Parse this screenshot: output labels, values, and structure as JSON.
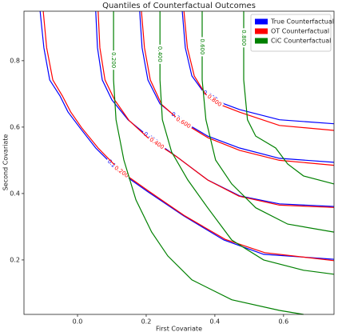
{
  "chart_data": {
    "type": "contour",
    "title": "Quantiles of Counterfactual Outcomes",
    "xlabel": "First Covariate",
    "ylabel": "Second Covariate",
    "xlim": [
      -0.156,
      0.747
    ],
    "ylim": [
      0.036,
      0.949
    ],
    "xticks": [
      {
        "value": 0,
        "label": "0.0"
      },
      0.2,
      0.4,
      0.6
    ],
    "yticks": [
      0.2,
      0.4,
      0.6,
      0.8
    ],
    "legend": "upper right",
    "series": [
      {
        "name": "True Counterfactual",
        "color": "#0000ff",
        "contours": [
          {
            "level": {
              "value": 0.2,
              "label": "0.200"
            },
            "x": [
              -0.109,
              -0.098,
              -0.081,
              -0.051,
              -0.028,
              0.007,
              0.053,
              0.123,
              0.205,
              0.309,
              0.426,
              0.542,
              0.747
            ],
            "y": [
              0.949,
              0.839,
              0.742,
              0.694,
              0.646,
              0.598,
              0.537,
              0.465,
              0.405,
              0.333,
              0.26,
              0.217,
              0.202
            ]
          },
          {
            "level": {
              "value": 0.4,
              "label": "0.400"
            },
            "x": [
              0.053,
              0.058,
              0.072,
              0.1,
              0.147,
              0.205,
              0.286,
              0.379,
              0.472,
              0.588,
              0.747
            ],
            "y": [
              0.949,
              0.839,
              0.742,
              0.682,
              0.622,
              0.573,
              0.513,
              0.441,
              0.393,
              0.369,
              0.361
            ]
          },
          {
            "level": {
              "value": 0.6,
              "label": "0.600"
            },
            "x": [
              0.181,
              0.188,
              0.205,
              0.24,
              0.298,
              0.379,
              0.472,
              0.588,
              0.747
            ],
            "y": [
              0.949,
              0.839,
              0.742,
              0.67,
              0.622,
              0.573,
              0.537,
              0.506,
              0.494
            ]
          },
          {
            "level": {
              "value": 0.8,
              "label": "0.800"
            },
            "x": [
              0.305,
              0.314,
              0.333,
              0.367,
              0.414,
              0.472,
              0.588,
              0.747
            ],
            "y": [
              0.949,
              0.839,
              0.754,
              0.706,
              0.675,
              0.653,
              0.622,
              0.61
            ]
          }
        ]
      },
      {
        "name": "OT Counterfactual",
        "color": "#ff0000",
        "contours": [
          {
            "level": {
              "value": 0.2,
              "label": "0.200"
            },
            "x": [
              -0.1,
              -0.09,
              -0.072,
              -0.044,
              -0.02,
              0.012,
              0.06,
              0.128,
              0.21,
              0.312,
              0.43,
              0.545,
              0.747
            ],
            "y": [
              0.949,
              0.839,
              0.742,
              0.694,
              0.646,
              0.598,
              0.537,
              0.465,
              0.405,
              0.333,
              0.262,
              0.222,
              0.198
            ]
          },
          {
            "level": {
              "value": 0.4,
              "label": "0.400"
            },
            "x": [
              0.06,
              0.065,
              0.08,
              0.108,
              0.15,
              0.205,
              0.29,
              0.38,
              0.47,
              0.588,
              0.747
            ],
            "y": [
              0.949,
              0.839,
              0.742,
              0.682,
              0.62,
              0.568,
              0.51,
              0.44,
              0.392,
              0.365,
              0.358
            ]
          },
          {
            "level": {
              "value": 0.6,
              "label": "0.600"
            },
            "x": [
              0.186,
              0.195,
              0.212,
              0.245,
              0.3,
              0.38,
              0.472,
              0.588,
              0.747
            ],
            "y": [
              0.949,
              0.839,
              0.742,
              0.668,
              0.618,
              0.568,
              0.53,
              0.5,
              0.485
            ]
          },
          {
            "level": {
              "value": 0.8,
              "label": "0.800"
            },
            "x": [
              0.31,
              0.32,
              0.34,
              0.372,
              0.414,
              0.472,
              0.588,
              0.747
            ],
            "y": [
              0.949,
              0.839,
              0.754,
              0.7,
              0.668,
              0.645,
              0.605,
              0.59
            ]
          }
        ]
      },
      {
        "name": "CiC Counterfactual",
        "color": "#008000",
        "contours": [
          {
            "level": {
              "value": 0.2,
              "label": "0.200"
            },
            "x": [
              0.105,
              0.105,
              0.112,
              0.135,
              0.17,
              0.216,
              0.263,
              0.333,
              0.449,
              0.588,
              0.658
            ],
            "y": [
              0.949,
              0.742,
              0.622,
              0.501,
              0.381,
              0.284,
              0.212,
              0.14,
              0.08,
              0.048,
              0.036
            ]
          },
          {
            "level": {
              "value": 0.4,
              "label": "0.400"
            },
            "x": [
              0.24,
              0.24,
              0.247,
              0.274,
              0.321,
              0.379,
              0.449,
              0.542,
              0.658,
              0.747
            ],
            "y": [
              0.949,
              0.742,
              0.622,
              0.525,
              0.441,
              0.357,
              0.26,
              0.2,
              0.169,
              0.157
            ]
          },
          {
            "level": {
              "value": 0.6,
              "label": "0.600"
            },
            "x": [
              0.363,
              0.363,
              0.374,
              0.402,
              0.449,
              0.519,
              0.612,
              0.747
            ],
            "y": [
              0.949,
              0.742,
              0.622,
              0.501,
              0.429,
              0.357,
              0.308,
              0.284
            ]
          },
          {
            "level": {
              "value": 0.8,
              "label": "0.800"
            },
            "x": [
              0.484,
              0.484,
              0.495,
              0.519,
              0.577,
              0.612,
              0.658,
              0.747
            ],
            "y": [
              0.949,
              0.742,
              0.622,
              0.573,
              0.537,
              0.489,
              0.453,
              0.429
            ]
          }
        ]
      }
    ]
  }
}
